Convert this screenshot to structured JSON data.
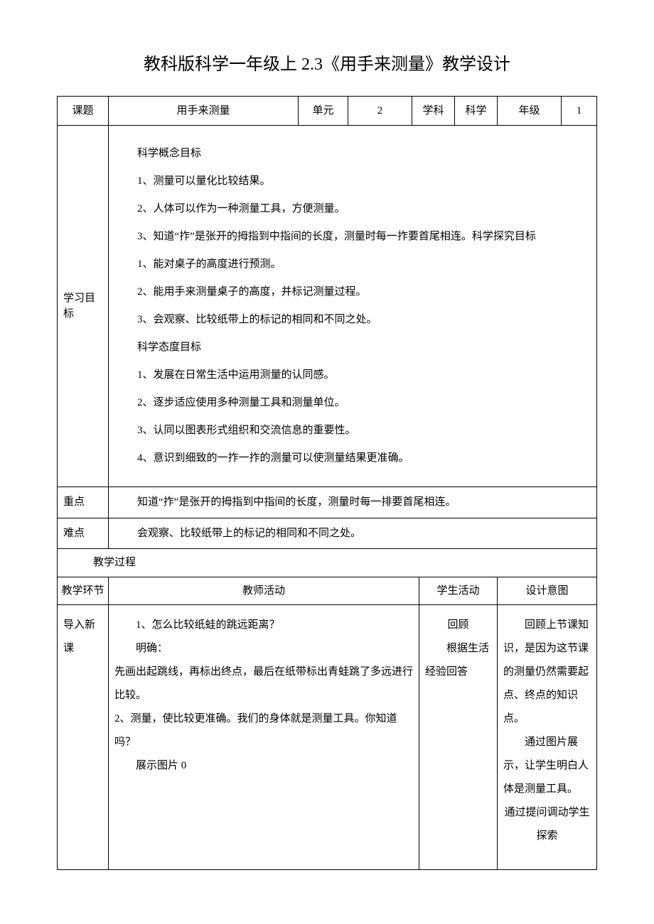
{
  "title": "教科版科学一年级上 2.3《用手来测量》教学设计",
  "header": {
    "topic_label": "课题",
    "topic_value": "用手来测量",
    "unit_label": "单元",
    "unit_value": "2",
    "subject_label": "学科",
    "subject_value": "科学",
    "grade_label": "年级",
    "grade_value": "1"
  },
  "goals": {
    "label": "学习目标",
    "lines": [
      "科学概念目标",
      "1、测量可以量化比较结果。",
      "2、人体可以作为一种测量工具，方便测量。",
      "3、知道“拃”是张开的拇指到中指间的长度，测量时每一拃要首尾相连。科学探究目标",
      "1、能对桌子的高度进行预测。",
      "2、能用手来测量桌子的高度，并标记测量过程。",
      "3、会观察、比较纸带上的标记的相同和不同之处。",
      "科学态度目标",
      "1、发展在日常生活中运用测量的认同感。",
      "2、逐步适应使用多种测量工具和测量单位。",
      "3、认同以图表形式组织和交流信息的重要性。",
      "4、意识到细致的一拃一拃的测量可以使测量结果更准确。"
    ]
  },
  "keypoint": {
    "label": "重点",
    "text": "知道“拃”是张开的拇指到中指间的长度，测量时每一排要首尾相连。"
  },
  "difficulty": {
    "label": "难点",
    "text": "会观察、比较纸带上的标记的相同和不同之处。"
  },
  "process_label": "教学过程",
  "process_header": {
    "stage": "教学环节",
    "teacher": "教师活动",
    "student": "学生活动",
    "intent": "设计意图"
  },
  "process_row": {
    "stage": "导入新课",
    "teacher": [
      "1、怎么比较纸蛙的跳远距离？",
      "明确：",
      "先画出起跳线，再标出终点，最后在纸带标出青蛙跳了多远进行比较。",
      "2、测量，使比较更准确。我们的身体就是测量工具。你知道吗？",
      "展示图片 0"
    ],
    "teacher_noindent_idx": [
      2,
      3
    ],
    "student": [
      "回顾",
      "根据生活经验回答"
    ],
    "intent": [
      "回顾上节课知识，是因为这节课的测量仍然需要起点、终点的知识点。",
      "通过图片展示，让学生明白人体是测量工具。",
      "通过提问调动学生探索"
    ],
    "intent_center_idx": [
      2
    ]
  },
  "style": {
    "text_color": "#000000",
    "background": "#ffffff",
    "border_color": "#000000",
    "title_fontsize": 24,
    "body_fontsize": 15
  }
}
